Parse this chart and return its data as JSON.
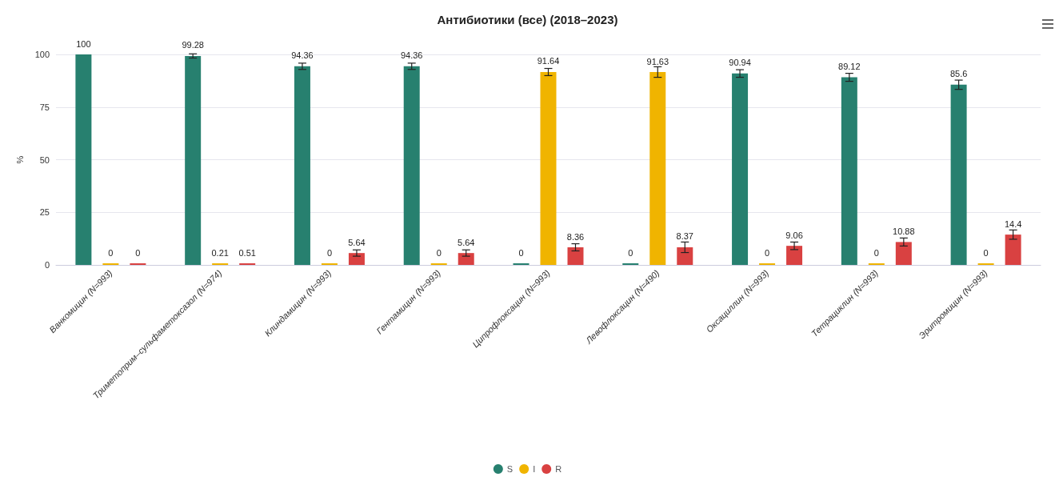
{
  "chart_data": {
    "type": "bar",
    "title": "Антибиотики (все) (2018–2023)",
    "ylabel": "%",
    "categories": [
      "Ванкомицин (N=993)",
      "Триметоприм–сульфаметоксазол (N=974)",
      "Клиндамицин (N=993)",
      "Гентамицин (N=993)",
      "Ципрофлоксацин (N=993)",
      "Левофлоксацин (N=490)",
      "Оксациллин (N=993)",
      "Тетрациклин (N=993)",
      "Эритромицин (N=993)"
    ],
    "series": [
      {
        "name": "S",
        "color": "#27806f",
        "values": [
          100,
          99.28,
          94.36,
          94.36,
          0,
          0,
          90.94,
          89.12,
          85.6
        ],
        "errors": [
          null,
          1,
          1.5,
          1.5,
          null,
          null,
          1.8,
          1.9,
          2.2
        ]
      },
      {
        "name": "I",
        "color": "#f0b400",
        "values": [
          0,
          0.21,
          0,
          0,
          91.64,
          91.63,
          0,
          0,
          0
        ],
        "errors": [
          null,
          null,
          null,
          null,
          1.7,
          2.5,
          null,
          null,
          null
        ]
      },
      {
        "name": "R",
        "color": "#d94141",
        "values": [
          0,
          0.51,
          5.64,
          5.64,
          8.36,
          8.37,
          9.06,
          10.88,
          14.4
        ],
        "errors": [
          null,
          null,
          1.5,
          1.5,
          1.7,
          2.5,
          1.8,
          1.9,
          2.2
        ]
      }
    ],
    "ylim": [
      0,
      100
    ],
    "yticks": [
      0,
      25,
      50,
      75,
      100
    ],
    "grid": "y",
    "legend": "bottom",
    "data_labels": true
  }
}
